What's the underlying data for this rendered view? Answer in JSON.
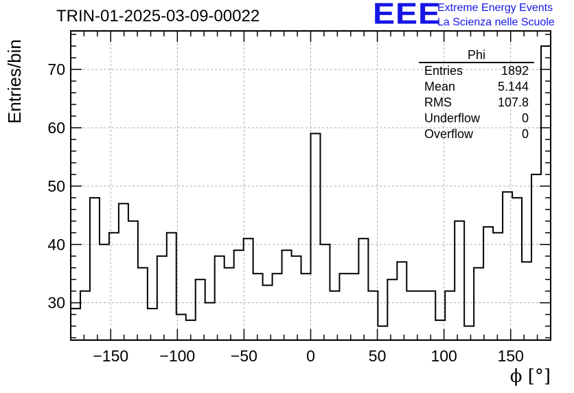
{
  "title": "TRIN-01-2025-03-09-00022",
  "logo": {
    "mark": "EEE",
    "line1": "Extreme Energy Events",
    "line2": "La Scienza nelle Scuole",
    "color": "#1515e6"
  },
  "stats_box": {
    "title": "Phi",
    "rows": [
      {
        "label": "Entries",
        "value": "1892"
      },
      {
        "label": "Mean",
        "value": "5.144"
      },
      {
        "label": "RMS",
        "value": "107.8"
      },
      {
        "label": "Underflow",
        "value": "0"
      },
      {
        "label": "Overflow",
        "value": "0"
      }
    ]
  },
  "chart_data": {
    "type": "bar",
    "style": "step-histogram",
    "xlabel": "ϕ [°]",
    "ylabel": "Entries/bin",
    "xlim": [
      -180,
      180
    ],
    "ylim": [
      23.6,
      76.6
    ],
    "bin_width": 7.2,
    "xticks": [
      -150,
      -100,
      -50,
      0,
      50,
      100,
      150
    ],
    "yticks": [
      30,
      40,
      50,
      60,
      70
    ],
    "grid": true,
    "values": [
      29,
      32,
      48,
      40,
      42,
      47,
      44,
      36,
      29,
      38,
      42,
      28,
      27,
      34,
      30,
      38,
      36,
      39,
      41,
      35,
      33,
      35,
      39,
      38,
      35,
      59,
      40,
      32,
      35,
      35,
      41,
      32,
      26,
      34,
      37,
      32,
      32,
      32,
      27,
      32,
      44,
      26,
      36,
      43,
      42,
      49,
      48,
      37,
      52,
      74
    ]
  }
}
